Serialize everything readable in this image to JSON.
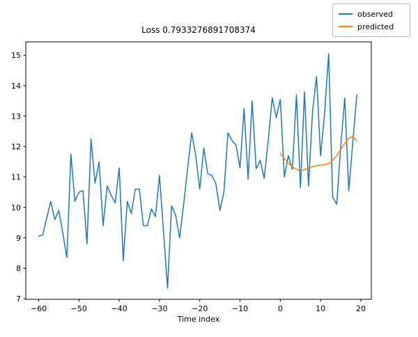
{
  "chart_data": {
    "type": "line",
    "title": "Loss 0.7933276891708374",
    "xlabel": "Time index",
    "ylabel": "",
    "grid": false,
    "legend_position": "upper right, figure corner, outside plot box",
    "background": "#ffffff",
    "axes": {
      "xlim": [
        -63.2,
        22.6
      ],
      "ylim": [
        6.98,
        15.44
      ]
    },
    "x_ticks": [
      {
        "v": -60,
        "label": "−60"
      },
      {
        "v": -50,
        "label": "−50"
      },
      {
        "v": -40,
        "label": "−40"
      },
      {
        "v": -30,
        "label": "−30"
      },
      {
        "v": -20,
        "label": "−20"
      },
      {
        "v": -10,
        "label": "−10"
      },
      {
        "v": 0,
        "label": "0"
      },
      {
        "v": 10,
        "label": "10"
      },
      {
        "v": 20,
        "label": "20"
      }
    ],
    "y_ticks": [
      {
        "v": 7,
        "label": "7"
      },
      {
        "v": 8,
        "label": "8"
      },
      {
        "v": 9,
        "label": "9"
      },
      {
        "v": 10,
        "label": "10"
      },
      {
        "v": 11,
        "label": "11"
      },
      {
        "v": 12,
        "label": "12"
      },
      {
        "v": 13,
        "label": "13"
      },
      {
        "v": 14,
        "label": "14"
      },
      {
        "v": 15,
        "label": "15"
      }
    ],
    "series": [
      {
        "name": "observed",
        "color": "#1f77b4",
        "x": [
          -60,
          -59,
          -58,
          -57,
          -56,
          -55,
          -54,
          -53,
          -52,
          -51,
          -50,
          -49,
          -48,
          -47,
          -46,
          -45,
          -44,
          -43,
          -42,
          -41,
          -40,
          -39,
          -38,
          -37,
          -36,
          -35,
          -34,
          -33,
          -32,
          -31,
          -30,
          -29,
          -28,
          -27,
          -26,
          -25,
          -24,
          -23,
          -22,
          -21,
          -20,
          -19,
          -18,
          -17,
          -16,
          -15,
          -14,
          -13,
          -12,
          -11,
          -10,
          -9,
          -8,
          -7,
          -6,
          -5,
          -4,
          -3,
          -2,
          -1,
          0,
          1,
          2,
          3,
          4,
          5,
          6,
          7,
          8,
          9,
          10,
          11,
          12,
          13,
          14,
          15,
          16,
          17,
          18,
          19
        ],
        "y": [
          9.05,
          9.1,
          9.65,
          10.2,
          9.6,
          9.9,
          9.15,
          8.35,
          11.75,
          10.2,
          10.5,
          10.55,
          8.8,
          12.25,
          10.8,
          11.5,
          9.4,
          10.7,
          10.4,
          10.15,
          11.3,
          8.25,
          10.2,
          9.8,
          10.6,
          10.6,
          9.4,
          9.4,
          9.95,
          9.7,
          11.05,
          9.2,
          7.35,
          10.05,
          9.75,
          9.0,
          10.1,
          11.3,
          12.45,
          11.7,
          10.6,
          11.95,
          11.1,
          11.05,
          10.78,
          9.9,
          10.5,
          12.45,
          12.2,
          12.05,
          11.3,
          13.25,
          10.93,
          13.5,
          11.27,
          11.55,
          10.95,
          12.2,
          13.6,
          12.95,
          13.55,
          11.0,
          11.7,
          11.25,
          13.7,
          10.65,
          13.8,
          10.7,
          13.15,
          14.3,
          11.7,
          13.1,
          15.05,
          10.35,
          10.1,
          12.0,
          13.6,
          10.55,
          12.15,
          13.7
        ]
      },
      {
        "name": "predicted",
        "color": "#ff7f0e",
        "x": [
          0,
          1,
          2,
          3,
          4,
          5,
          6,
          7,
          8,
          9,
          10,
          11,
          12,
          13,
          14,
          15,
          16,
          17,
          18,
          19
        ],
        "y": [
          11.78,
          11.6,
          11.45,
          11.33,
          11.25,
          11.2,
          11.24,
          11.3,
          11.34,
          11.37,
          11.39,
          11.41,
          11.44,
          11.55,
          11.7,
          11.9,
          12.1,
          12.28,
          12.33,
          12.18
        ]
      }
    ]
  }
}
